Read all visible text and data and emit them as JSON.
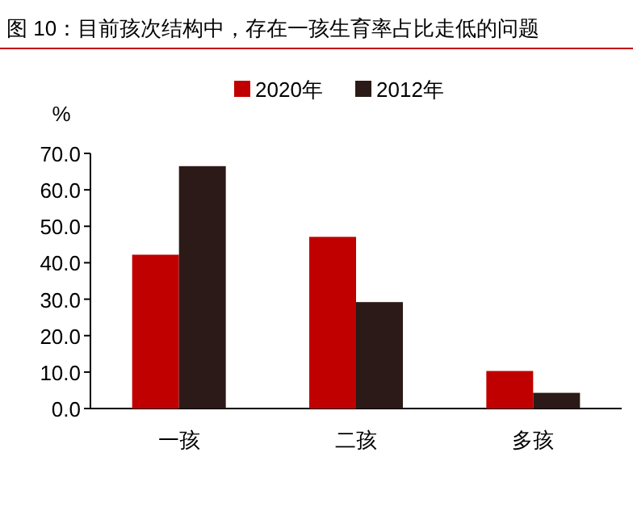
{
  "chart_data": {
    "type": "bar",
    "title": "图 10：目前孩次结构中，存在一孩生育率占比走低的问题",
    "ylabel": "%",
    "categories": [
      "一孩",
      "二孩",
      "多孩"
    ],
    "series": [
      {
        "name": "2020年",
        "color": "#c00000",
        "values": [
          42.2,
          47.1,
          10.3
        ]
      },
      {
        "name": "2012年",
        "color": "#2b1a17",
        "values": [
          66.5,
          29.2,
          4.3
        ]
      }
    ],
    "ylim": [
      0,
      70
    ],
    "yticks": [
      {
        "value": 0,
        "label": "0.0"
      },
      {
        "value": 10,
        "label": "10.0"
      },
      {
        "value": 20,
        "label": "20.0"
      },
      {
        "value": 30,
        "label": "30.0"
      },
      {
        "value": 40,
        "label": "40.0"
      },
      {
        "value": 50,
        "label": "50.0"
      },
      {
        "value": 60,
        "label": "60.0"
      },
      {
        "value": 70,
        "label": "70.0"
      }
    ],
    "legend": "top",
    "grid": false
  }
}
